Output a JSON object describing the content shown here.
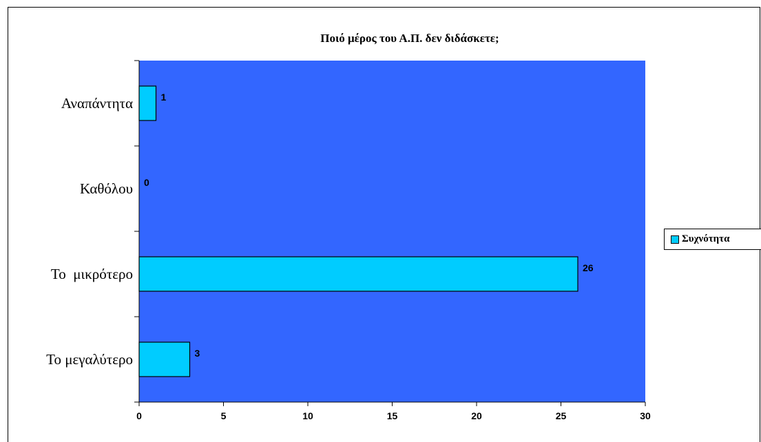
{
  "chart_data": {
    "type": "bar",
    "orientation": "horizontal",
    "title": "Ποιό μέρος του Α.Π. δεν διδάσκετε;",
    "categories": [
      "Το μεγαλύτερο",
      "Το  μικρότερο",
      "Καθόλου",
      "Αναπάντητα"
    ],
    "series": [
      {
        "name": "Συχνότητα",
        "values": [
          3,
          26,
          0,
          1
        ]
      }
    ],
    "xlabel": "",
    "ylabel": "",
    "xlim": [
      0,
      30
    ],
    "xticks": [
      0,
      5,
      10,
      15,
      20,
      25,
      30
    ],
    "grid": false,
    "legend_position": "right",
    "colors": {
      "plot_background": "#3366FF",
      "bar_fill": "#00CCFF",
      "bar_stroke": "#000000"
    }
  }
}
